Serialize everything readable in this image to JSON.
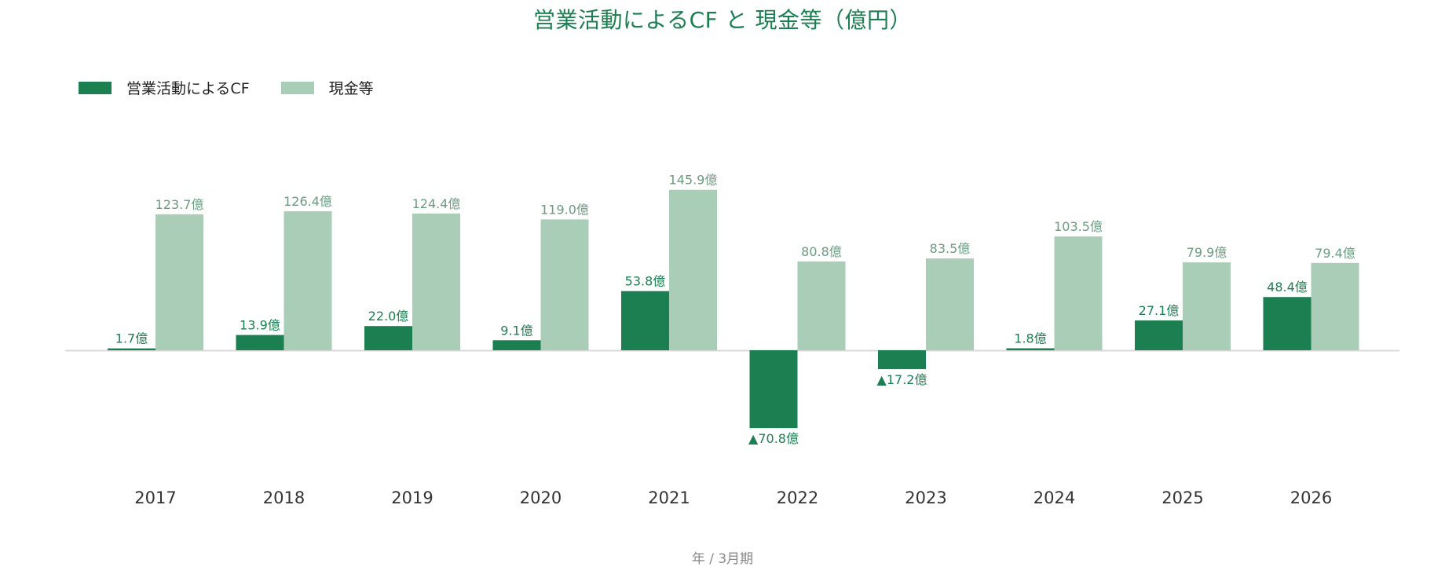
{
  "chart_data": {
    "type": "bar",
    "title": "営業活動によるCF と 現金等（億円）",
    "xlabel": "年 / 3月期",
    "ylabel": "",
    "categories": [
      "2017",
      "2018",
      "2019",
      "2020",
      "2021",
      "2022",
      "2023",
      "2024",
      "2025",
      "2026"
    ],
    "series": [
      {
        "name": "営業活動によるCF",
        "color": "#1b7f51",
        "values": [
          1.7,
          13.9,
          22.0,
          9.1,
          53.8,
          -70.8,
          -17.2,
          1.8,
          27.1,
          48.4
        ],
        "labels": [
          "1.7億",
          "13.9億",
          "22.0億",
          "9.1億",
          "53.8億",
          "▲70.8億",
          "▲17.2億",
          "1.8億",
          "27.1億",
          "48.4億"
        ]
      },
      {
        "name": "現金等",
        "color": "#a9cdb6",
        "values": [
          123.7,
          126.4,
          124.4,
          119.0,
          145.9,
          80.8,
          83.5,
          103.5,
          79.9,
          79.4
        ],
        "labels": [
          "123.7億",
          "126.4億",
          "124.4億",
          "119.0億",
          "145.9億",
          "80.8億",
          "83.5億",
          "103.5億",
          "79.9億",
          "79.4億"
        ]
      }
    ],
    "ylim": [
      -100,
      165
    ],
    "grid": false,
    "legend_position": "top-left",
    "colors": {
      "title": "#1b7f51",
      "cash_label": "#6a9c80",
      "cf_label": "#1b7f51",
      "axis": "#d9d9d9",
      "xtick": "#333333",
      "xlabel": "#888888"
    }
  }
}
